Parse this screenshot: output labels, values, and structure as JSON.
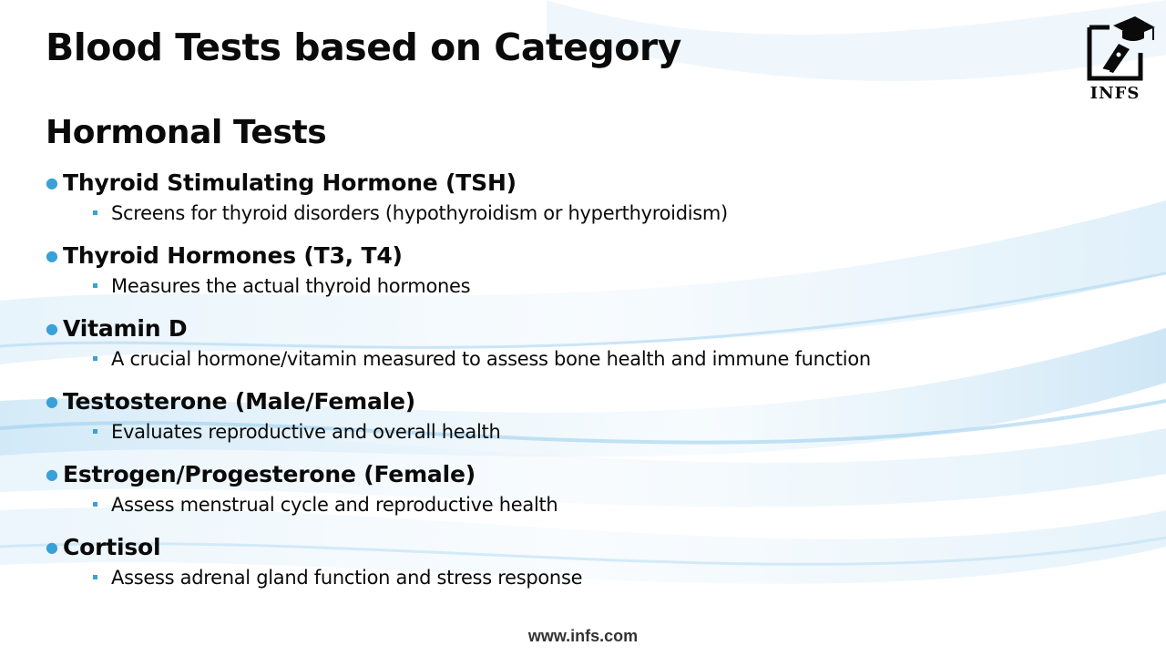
{
  "slide": {
    "title": "Blood Tests based on Category",
    "section_heading": "Hormonal Tests",
    "footer_url": "www.infs.com"
  },
  "logo": {
    "text": "INFS",
    "icon": "graduation-cap-pen-icon"
  },
  "tests": [
    {
      "name": "Thyroid Stimulating Hormone (TSH)",
      "description": "Screens for thyroid disorders (hypothyroidism or hyperthyroidism)"
    },
    {
      "name": "Thyroid Hormones (T3, T4)",
      "description": "Measures the actual thyroid hormones"
    },
    {
      "name": "Vitamin D",
      "description": "A crucial hormone/vitamin measured to assess bone health and immune function"
    },
    {
      "name": "Testosterone (Male/Female)",
      "description": "Evaluates reproductive and overall health"
    },
    {
      "name": "Estrogen/Progesterone (Female)",
      "description": "Assess menstrual cycle and reproductive health"
    },
    {
      "name": "Cortisol",
      "description": "Assess adrenal gland function and stress response"
    }
  ],
  "colors": {
    "bullet_accent": "#3aa0d8",
    "text": "#0a0a0a",
    "wave_light": "#d6ecf8",
    "wave_mid": "#a9d3ee"
  }
}
